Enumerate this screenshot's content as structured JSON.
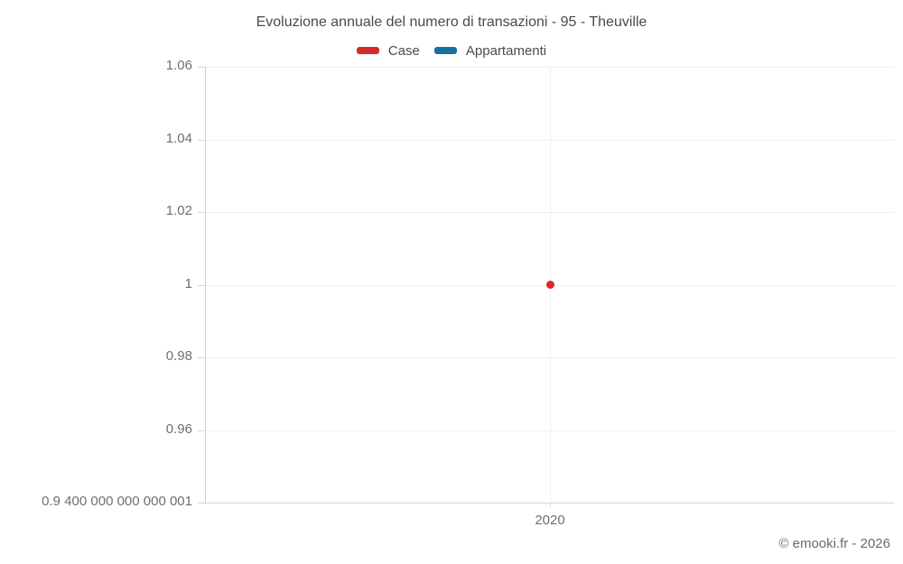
{
  "title": "Evoluzione annuale del numero di transazioni - 95 - Theuville",
  "legend": [
    {
      "label": "Case",
      "color": "#d32b2b"
    },
    {
      "label": "Appartamenti",
      "color": "#1b6ea0"
    }
  ],
  "footer": {
    "copyright": "© emooki.fr - 2026"
  },
  "colors": {
    "case_red": "#d32b2b",
    "appartamenti_blue": "#1b6ea0",
    "gridline": "#efefef",
    "axis": "#cfcfcf",
    "title_text": "#4a4a4a",
    "tick_text": "#6f6f6f"
  },
  "chart_data": {
    "type": "scatter",
    "title": "Evoluzione annuale del numero di transazioni - 95 - Theuville",
    "xlabel": "",
    "ylabel": "",
    "x": [
      2020
    ],
    "xtick_labels": [
      "2020"
    ],
    "series": [
      {
        "name": "Case",
        "color": "#d32b2b",
        "points": [
          {
            "x": 2020,
            "y": 1
          }
        ]
      },
      {
        "name": "Appartamenti",
        "color": "#1b6ea0",
        "points": []
      }
    ],
    "ylim": [
      0.94,
      1.06
    ],
    "ytick_values": [
      1.06,
      1.04,
      1.02,
      1,
      0.98,
      0.96,
      0.94
    ],
    "ytick_labels": [
      "1.06",
      "1.04",
      "1.02",
      "1",
      "0.98",
      "0.96",
      "0.9 400 000 000 000 001"
    ],
    "grid": true,
    "legend_position": "top"
  }
}
